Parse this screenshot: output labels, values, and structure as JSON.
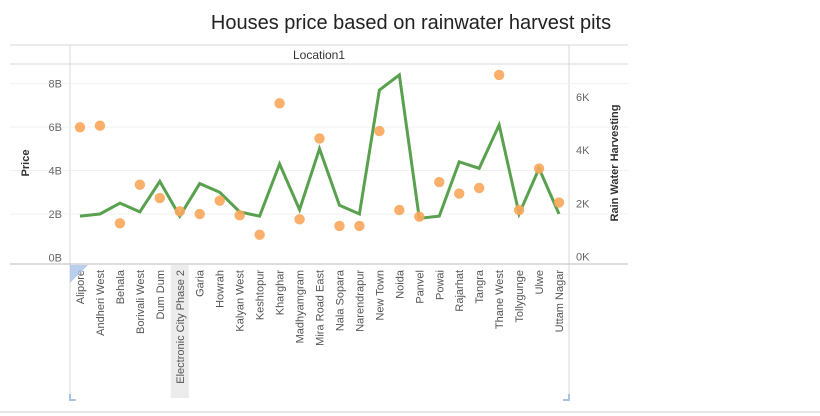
{
  "chart_data": {
    "type": "line",
    "title": "Houses price based on rainwater harvest pits",
    "column_header": "Location1",
    "categories": [
      "Alipore",
      "Andheri West",
      "Behala",
      "Borivali West",
      "Dum Dum",
      "Electronic City Phase 2",
      "Garia",
      "Howrah",
      "Kalyan West",
      "Keshtopur",
      "Kharghar",
      "Madhyamgram",
      "Mira Road East",
      "Nala Sopara",
      "Narendrapur",
      "New Town",
      "Noida",
      "Panvel",
      "Powai",
      "Rajarhat",
      "Tangra",
      "Thane West",
      "Tollygunge",
      "Ulwe",
      "Uttam Nagar"
    ],
    "highlighted_category": "Electronic City Phase 2",
    "y_left": {
      "label": "Price",
      "ticks": [
        "0B",
        "2B",
        "4B",
        "6B",
        "8B"
      ],
      "tick_values": [
        0,
        2,
        4,
        6,
        8
      ],
      "range": [
        -0.3,
        8.9
      ]
    },
    "y_right": {
      "label": "Rain Water Harvesting",
      "ticks": [
        "0K",
        "2K",
        "4K",
        "6K"
      ],
      "tick_values": [
        0,
        2000,
        4000,
        6000
      ],
      "range": [
        -280,
        7240
      ]
    },
    "series": [
      {
        "name": "Price",
        "mark": "line",
        "axis": "left",
        "color": "#59a14f",
        "values": [
          1.9,
          2.0,
          2.5,
          2.1,
          3.5,
          1.9,
          3.4,
          3.0,
          2.1,
          1.9,
          4.3,
          2.2,
          5.0,
          2.4,
          2.0,
          7.7,
          8.4,
          1.8,
          1.9,
          4.4,
          4.1,
          6.1,
          2.0,
          4.1,
          2.0
        ]
      },
      {
        "name": "Rain Water Harvesting",
        "mark": "circle",
        "axis": "right",
        "color": "#f9a65a",
        "values": [
          4860,
          4920,
          1250,
          2700,
          2200,
          1700,
          1600,
          2100,
          1550,
          820,
          5760,
          1400,
          4440,
          1150,
          1150,
          4720,
          1750,
          1500,
          2800,
          2370,
          2580,
          6830,
          1750,
          3310,
          2030
        ]
      }
    ],
    "grid": true
  }
}
